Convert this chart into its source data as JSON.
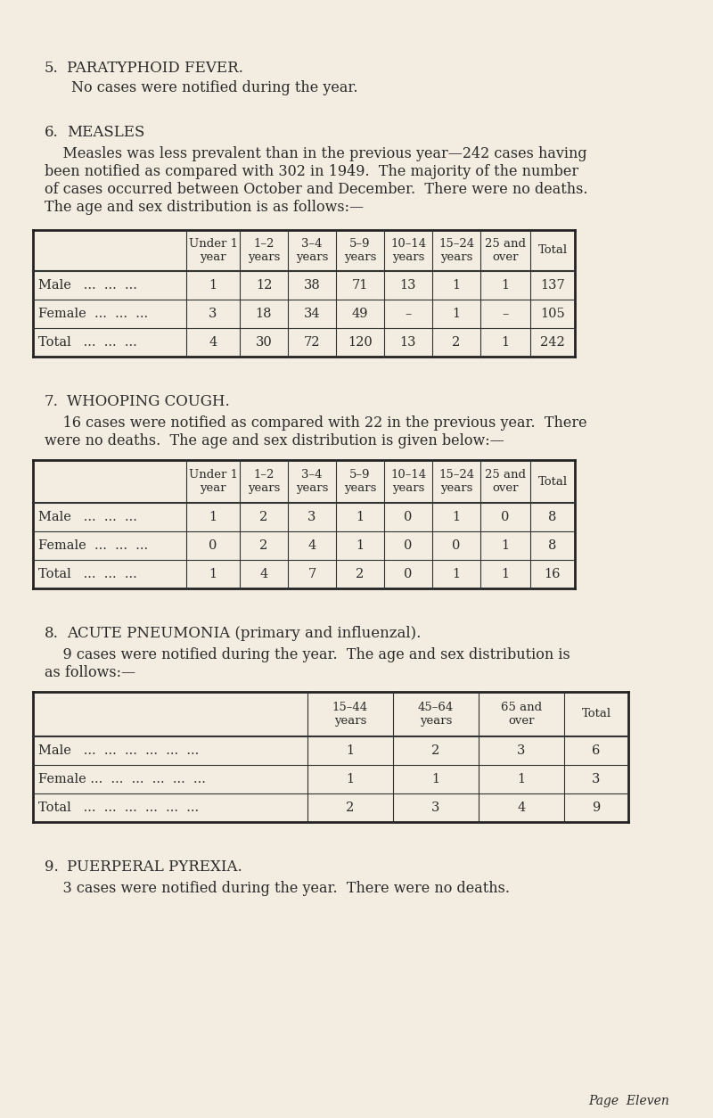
{
  "bg_color": "#f2ede0",
  "text_color": "#2a2a2a",
  "section5_num": "5.",
  "section5_title": "PARATYPHOID FEVER.",
  "section5_body": "No cases were notified during the year.",
  "section6_num": "6.",
  "section6_title": "MEASLES",
  "section6_body_lines": [
    "    Measles was less prevalent than in the previous year—242 cases having",
    "been notified as compared with 302 in 1949.  The majority of the number",
    "of cases occurred between October and December.  There were no deaths.",
    "The age and sex distribution is as follows:—"
  ],
  "measles_headers": [
    "",
    "Under 1\nyear",
    "1–2\nyears",
    "3–4\nyears",
    "5–9\nyears",
    "10–14\nyears",
    "15–24\nyears",
    "25 and\nover",
    "Total"
  ],
  "measles_rows": [
    [
      "Male   ...  ...  ...",
      "1",
      "12",
      "38",
      "71",
      "13",
      "1",
      "1",
      "137"
    ],
    [
      "Female  ...  ...  ...",
      "3",
      "18",
      "34",
      "49",
      "–",
      "1",
      "–",
      "105"
    ],
    [
      "Total   ...  ...  ...",
      "4",
      "30",
      "72",
      "120",
      "13",
      "2",
      "1",
      "242"
    ]
  ],
  "section7_num": "7.",
  "section7_title": "WHOOPING COUGH.",
  "section7_body_lines": [
    "    16 cases were notified as compared with 22 in the previous year.  There",
    "were no deaths.  The age and sex distribution is given below:—"
  ],
  "whooping_headers": [
    "",
    "Under 1\nyear",
    "1–2\nyears",
    "3–4\nyears",
    "5–9\nyears",
    "10–14\nyears",
    "15–24\nyears",
    "25 and\nover",
    "Total"
  ],
  "whooping_rows": [
    [
      "Male   ...  ...  ...",
      "1",
      "2",
      "3",
      "1",
      "0",
      "1",
      "0",
      "8"
    ],
    [
      "Female  ...  ...  ...",
      "0",
      "2",
      "4",
      "1",
      "0",
      "0",
      "1",
      "8"
    ],
    [
      "Total   ...  ...  ...",
      "1",
      "4",
      "7",
      "2",
      "0",
      "1",
      "1",
      "16"
    ]
  ],
  "section8_num": "8.",
  "section8_title": "ACUTE PNEUMONIA (primary and influenzal).",
  "section8_body_lines": [
    "    9 cases were notified during the year.  The age and sex distribution is",
    "as follows:—"
  ],
  "pneumonia_headers": [
    "",
    "15–44\nyears",
    "45–64\nyears",
    "65 and\nover",
    "Total"
  ],
  "pneumonia_rows": [
    [
      "Male   ...  ...  ...  ...  ...  ...",
      "1",
      "2",
      "3",
      "6"
    ],
    [
      "Female ...  ...  ...  ...  ...  ...",
      "1",
      "1",
      "1",
      "3"
    ],
    [
      "Total   ...  ...  ...  ...  ...  ...",
      "2",
      "3",
      "4",
      "9"
    ]
  ],
  "section9_num": "9.",
  "section9_title": "PUERPERAL PYREXIA.",
  "section9_body": "    3 cases were notified during the year.  There were no deaths.",
  "footer": "Page  Eleven"
}
